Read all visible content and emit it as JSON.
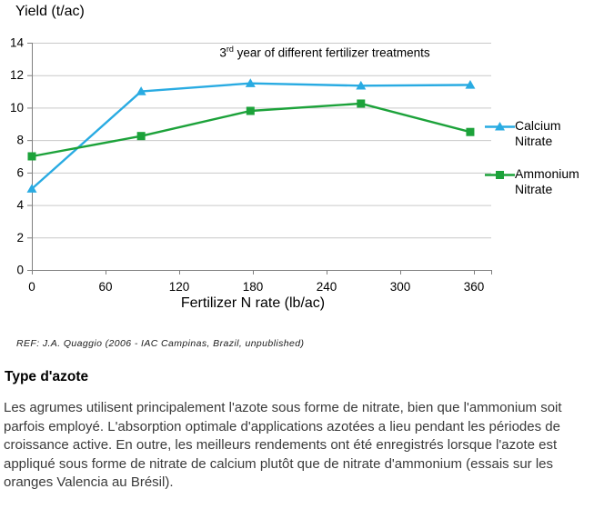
{
  "chart": {
    "y_axis_title": "Yield (t/ac)",
    "x_axis_title": "Fertilizer N rate (lb/ac)",
    "title_prefix": "3",
    "title_sup": "rd",
    "title_rest": " year of different fertilizer treatments"
  },
  "chart_data": {
    "type": "line",
    "title": "3rd year of different fertilizer treatments",
    "xlabel": "Fertilizer N rate (lb/ac)",
    "ylabel": "Yield (t/ac)",
    "x_ticks": [
      0,
      60,
      120,
      180,
      240,
      300,
      360
    ],
    "y_ticks": [
      0,
      2,
      4,
      6,
      8,
      10,
      12,
      14
    ],
    "xlim": [
      0,
      374
    ],
    "ylim": [
      0,
      14
    ],
    "grid": "horizontal",
    "legend_position": "right",
    "x": [
      0,
      89,
      178,
      268,
      357
    ],
    "series": [
      {
        "name": "Calcium Nitrate",
        "color": "#29ABE2",
        "marker": "triangle",
        "values": [
          5.0,
          11.0,
          11.5,
          11.35,
          11.4
        ]
      },
      {
        "name": "Ammonium Nitrate",
        "color": "#1CA23A",
        "marker": "square",
        "values": [
          7.0,
          8.25,
          9.8,
          10.25,
          8.5
        ]
      }
    ],
    "colors": {
      "grid": "#C9C9C9",
      "axis": "#7F7F7F",
      "text": "#000000"
    }
  },
  "legend": {
    "items": [
      {
        "label": "Calcium Nitrate",
        "color": "#29ABE2",
        "marker": "triangle-icon"
      },
      {
        "label": "Ammonium Nitrate",
        "color": "#1CA23A",
        "marker": "square-icon"
      }
    ]
  },
  "reference": "REF: J.A. Quaggio  (2006 - IAC Campinas, Brazil, unpublished)",
  "section": {
    "heading": "Type d'azote",
    "paragraph": "Les agrumes utilisent principalement l'azote sous forme de nitrate, bien que l'ammonium soit parfois employé. L'absorption optimale d'applications azotées a lieu pendant les périodes de croissance active. En outre, les meilleurs rendements ont été enregistrés lorsque l'azote est appliqué sous forme de nitrate de calcium plutôt que de nitrate d'ammonium (essais sur les oranges Valencia au Brésil)."
  }
}
